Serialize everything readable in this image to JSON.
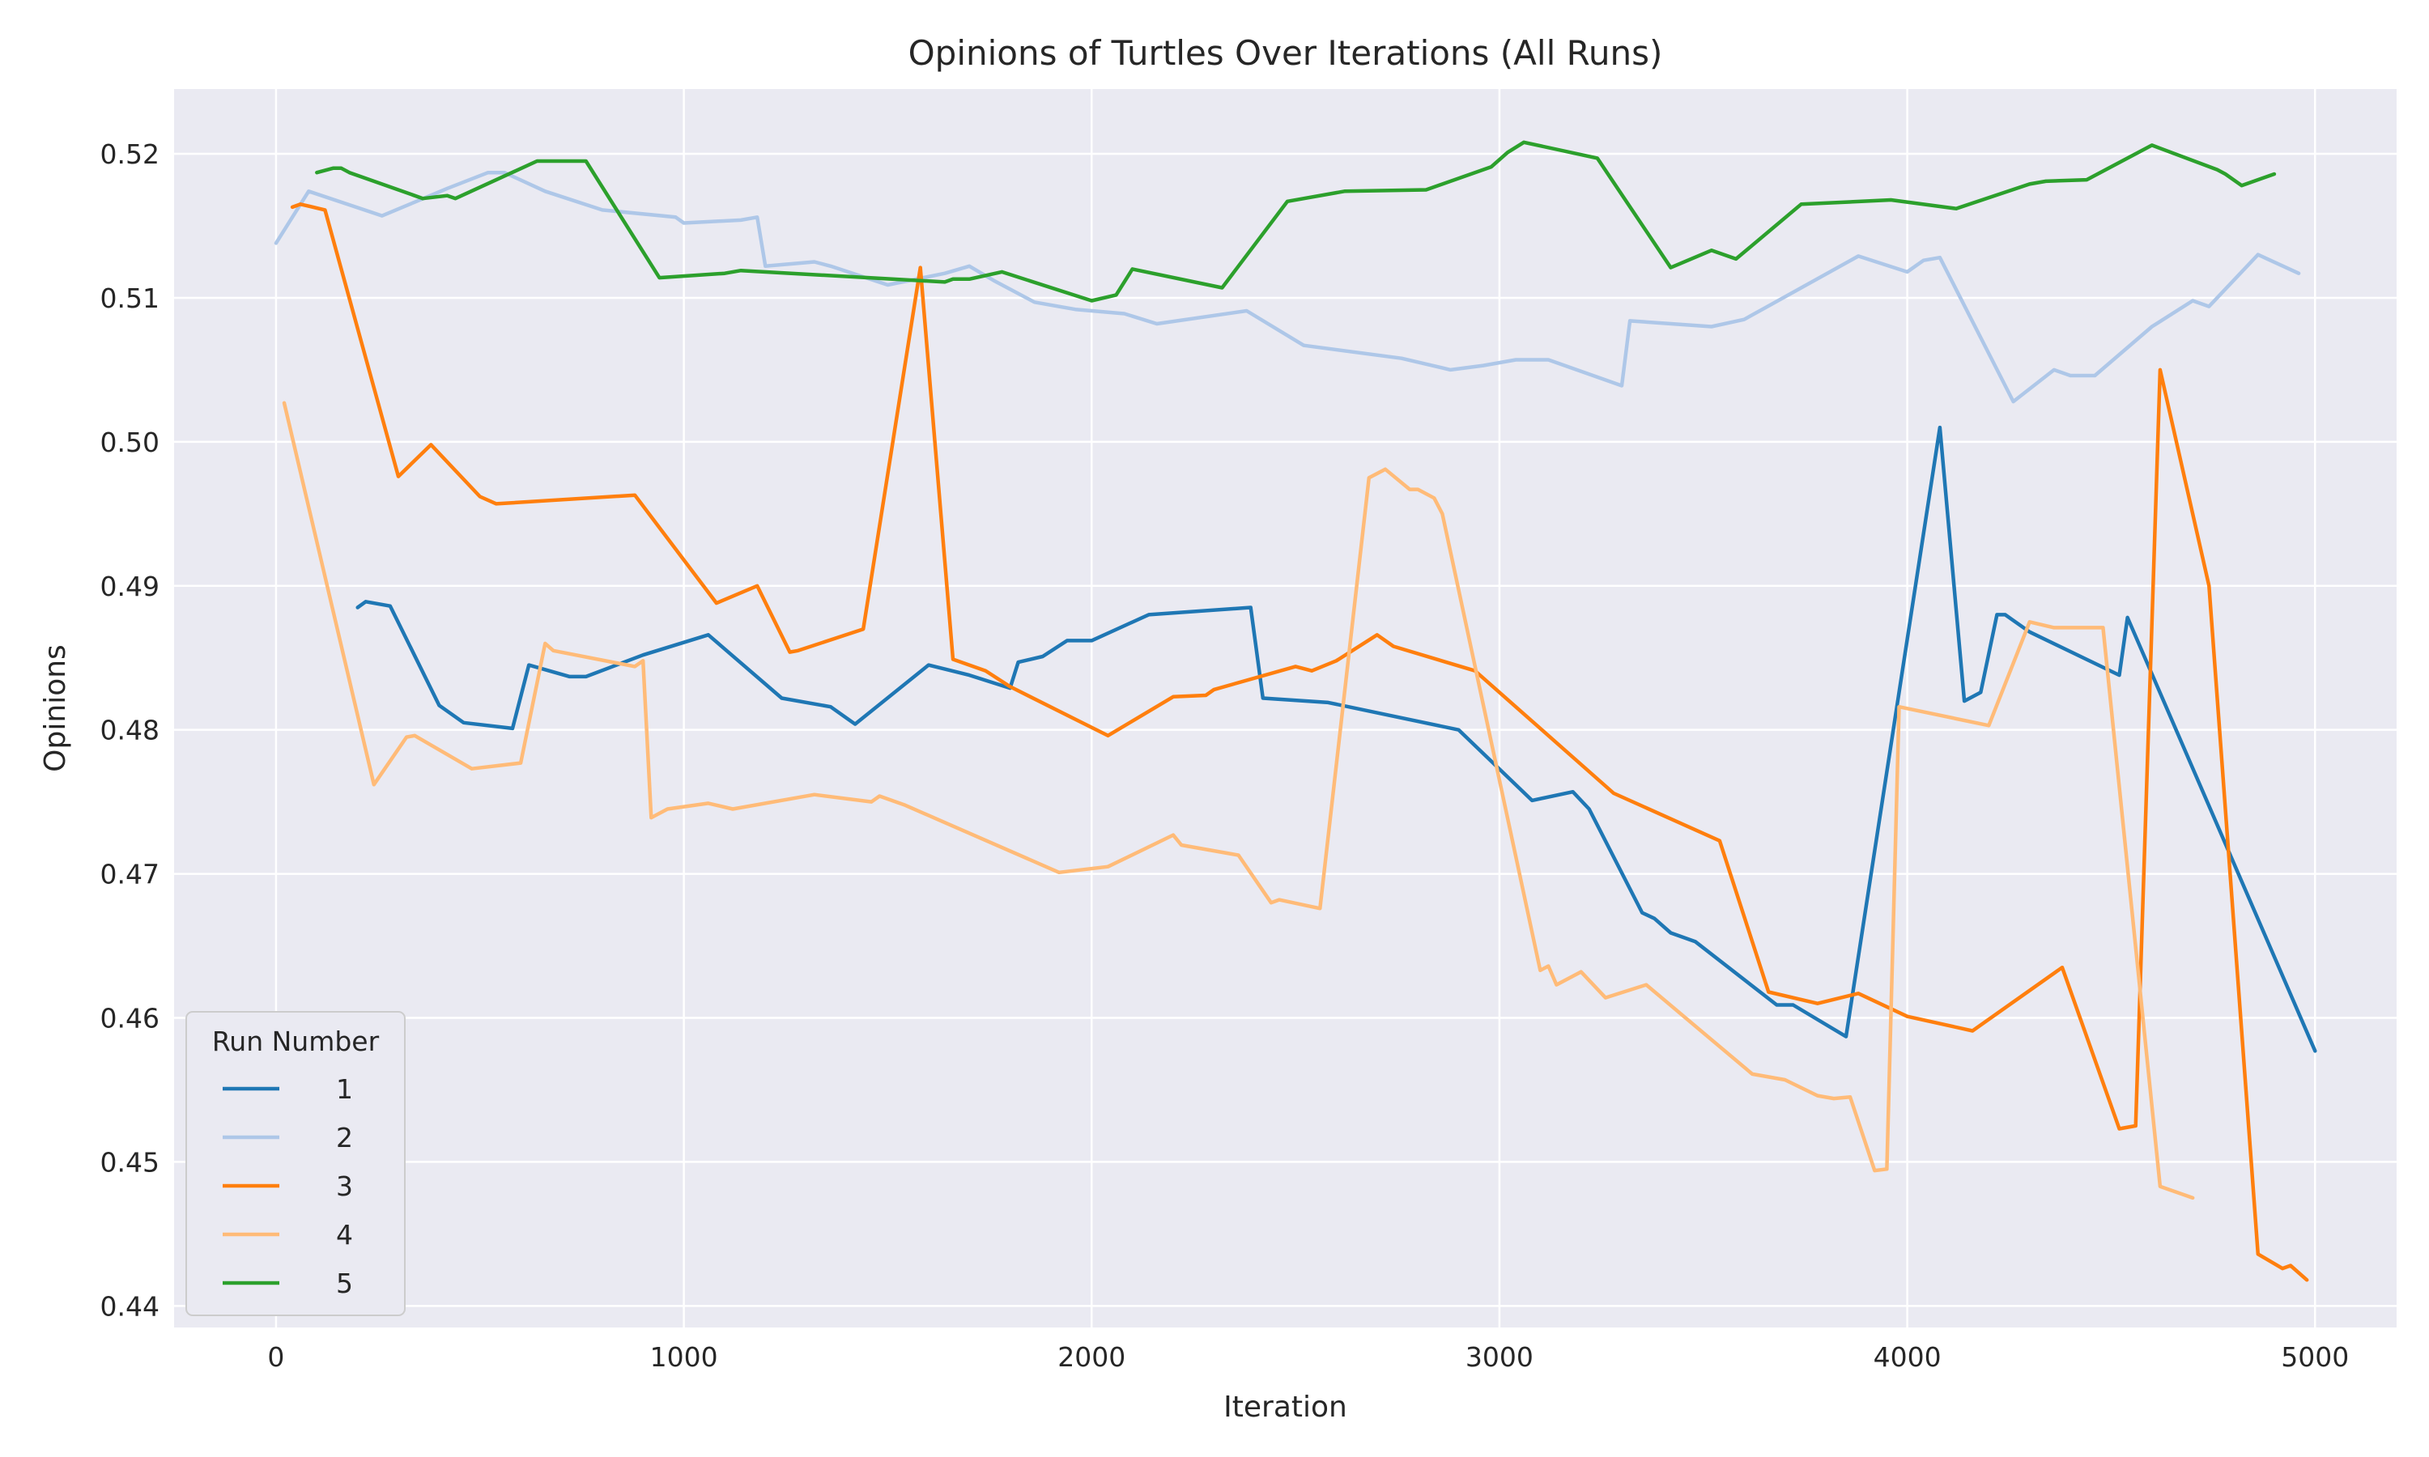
{
  "chart_data": {
    "type": "line",
    "title": "Opinions of Turtles Over Iterations (All Runs)",
    "xlabel": "Iteration",
    "ylabel": "Opinions",
    "xlim": [
      -250,
      5200
    ],
    "ylim": [
      0.4385,
      0.5245
    ],
    "xticks": [
      0,
      1000,
      2000,
      3000,
      4000,
      5000
    ],
    "xtick_labels": [
      "0",
      "1000",
      "2000",
      "3000",
      "4000",
      "5000"
    ],
    "yticks": [
      0.44,
      0.45,
      0.46,
      0.47,
      0.48,
      0.49,
      0.5,
      0.51,
      0.52
    ],
    "ytick_labels": [
      "0.44",
      "0.45",
      "0.46",
      "0.47",
      "0.48",
      "0.49",
      "0.50",
      "0.51",
      "0.52"
    ],
    "grid": true,
    "legend": {
      "title": "Run Number",
      "placement": "lower-left"
    },
    "series": [
      {
        "name": "1",
        "color": "#1f77b4",
        "points": [
          [
            200,
            0.4885
          ],
          [
            220,
            0.4889
          ],
          [
            280,
            0.4886
          ],
          [
            400,
            0.4817
          ],
          [
            460,
            0.4805
          ],
          [
            580,
            0.4801
          ],
          [
            620,
            0.4845
          ],
          [
            720,
            0.4837
          ],
          [
            760,
            0.4837
          ],
          [
            900,
            0.4852
          ],
          [
            1060,
            0.4866
          ],
          [
            1240,
            0.4822
          ],
          [
            1360,
            0.4816
          ],
          [
            1420,
            0.4804
          ],
          [
            1600,
            0.4845
          ],
          [
            1700,
            0.4838
          ],
          [
            1800,
            0.4829
          ],
          [
            1820,
            0.4847
          ],
          [
            1880,
            0.4851
          ],
          [
            1940,
            0.4862
          ],
          [
            2000,
            0.4862
          ],
          [
            2140,
            0.488
          ],
          [
            2390,
            0.4885
          ],
          [
            2420,
            0.4822
          ],
          [
            2580,
            0.4819
          ],
          [
            2900,
            0.48
          ],
          [
            3080,
            0.4751
          ],
          [
            3180,
            0.4757
          ],
          [
            3220,
            0.4745
          ],
          [
            3350,
            0.4673
          ],
          [
            3380,
            0.4669
          ],
          [
            3420,
            0.4659
          ],
          [
            3480,
            0.4653
          ],
          [
            3680,
            0.4609
          ],
          [
            3720,
            0.4609
          ],
          [
            3850,
            0.4587
          ],
          [
            4080,
            0.501
          ],
          [
            4140,
            0.482
          ],
          [
            4180,
            0.4826
          ],
          [
            4220,
            0.488
          ],
          [
            4240,
            0.488
          ],
          [
            4300,
            0.4868
          ],
          [
            4520,
            0.4838
          ],
          [
            4540,
            0.4878
          ],
          [
            5000,
            0.4577
          ]
        ]
      },
      {
        "name": "2",
        "color": "#aec7e8",
        "points": [
          [
            0,
            0.5138
          ],
          [
            80,
            0.5174
          ],
          [
            260,
            0.5157
          ],
          [
            420,
            0.5176
          ],
          [
            520,
            0.5187
          ],
          [
            560,
            0.5187
          ],
          [
            660,
            0.5174
          ],
          [
            800,
            0.5161
          ],
          [
            980,
            0.5156
          ],
          [
            1000,
            0.5152
          ],
          [
            1140,
            0.5154
          ],
          [
            1180,
            0.5156
          ],
          [
            1200,
            0.5122
          ],
          [
            1320,
            0.5125
          ],
          [
            1360,
            0.5122
          ],
          [
            1500,
            0.5109
          ],
          [
            1640,
            0.5117
          ],
          [
            1700,
            0.5122
          ],
          [
            1760,
            0.5112
          ],
          [
            1860,
            0.5097
          ],
          [
            1960,
            0.5092
          ],
          [
            2080,
            0.5089
          ],
          [
            2160,
            0.5082
          ],
          [
            2380,
            0.5091
          ],
          [
            2520,
            0.5067
          ],
          [
            2760,
            0.5058
          ],
          [
            2880,
            0.505
          ],
          [
            2960,
            0.5053
          ],
          [
            3040,
            0.5057
          ],
          [
            3120,
            0.5057
          ],
          [
            3300,
            0.5039
          ],
          [
            3320,
            0.5084
          ],
          [
            3520,
            0.508
          ],
          [
            3600,
            0.5085
          ],
          [
            3880,
            0.5129
          ],
          [
            4000,
            0.5118
          ],
          [
            4040,
            0.5126
          ],
          [
            4080,
            0.5128
          ],
          [
            4260,
            0.5028
          ],
          [
            4360,
            0.505
          ],
          [
            4400,
            0.5046
          ],
          [
            4460,
            0.5046
          ],
          [
            4600,
            0.508
          ],
          [
            4700,
            0.5098
          ],
          [
            4740,
            0.5094
          ],
          [
            4860,
            0.513
          ],
          [
            4960,
            0.5117
          ]
        ]
      },
      {
        "name": "3",
        "color": "#ff7f0e",
        "points": [
          [
            40,
            0.5163
          ],
          [
            60,
            0.5165
          ],
          [
            120,
            0.5161
          ],
          [
            300,
            0.4976
          ],
          [
            380,
            0.4998
          ],
          [
            500,
            0.4962
          ],
          [
            540,
            0.4957
          ],
          [
            880,
            0.4963
          ],
          [
            1080,
            0.4888
          ],
          [
            1180,
            0.49
          ],
          [
            1260,
            0.4854
          ],
          [
            1280,
            0.4855
          ],
          [
            1440,
            0.487
          ],
          [
            1580,
            0.5121
          ],
          [
            1660,
            0.4849
          ],
          [
            1740,
            0.4841
          ],
          [
            1800,
            0.483
          ],
          [
            2040,
            0.4796
          ],
          [
            2200,
            0.4823
          ],
          [
            2280,
            0.4824
          ],
          [
            2300,
            0.4828
          ],
          [
            2500,
            0.4844
          ],
          [
            2540,
            0.4841
          ],
          [
            2600,
            0.4848
          ],
          [
            2700,
            0.4866
          ],
          [
            2740,
            0.4858
          ],
          [
            2940,
            0.4841
          ],
          [
            3280,
            0.4756
          ],
          [
            3540,
            0.4723
          ],
          [
            3660,
            0.4618
          ],
          [
            3780,
            0.461
          ],
          [
            3880,
            0.4617
          ],
          [
            4000,
            0.4601
          ],
          [
            4160,
            0.4591
          ],
          [
            4380,
            0.4635
          ],
          [
            4520,
            0.4523
          ],
          [
            4560,
            0.4525
          ],
          [
            4620,
            0.505
          ],
          [
            4740,
            0.49
          ],
          [
            4860,
            0.4436
          ],
          [
            4920,
            0.4426
          ],
          [
            4940,
            0.4428
          ],
          [
            4980,
            0.4418
          ]
        ]
      },
      {
        "name": "4",
        "color": "#ffbb78",
        "points": [
          [
            20,
            0.5027
          ],
          [
            240,
            0.4762
          ],
          [
            320,
            0.4795
          ],
          [
            340,
            0.4796
          ],
          [
            480,
            0.4773
          ],
          [
            600,
            0.4777
          ],
          [
            660,
            0.486
          ],
          [
            680,
            0.4855
          ],
          [
            880,
            0.4844
          ],
          [
            900,
            0.4848
          ],
          [
            920,
            0.4739
          ],
          [
            960,
            0.4745
          ],
          [
            1060,
            0.4749
          ],
          [
            1120,
            0.4745
          ],
          [
            1320,
            0.4755
          ],
          [
            1460,
            0.475
          ],
          [
            1480,
            0.4754
          ],
          [
            1540,
            0.4748
          ],
          [
            1920,
            0.4701
          ],
          [
            2040,
            0.4705
          ],
          [
            2200,
            0.4727
          ],
          [
            2220,
            0.472
          ],
          [
            2360,
            0.4713
          ],
          [
            2440,
            0.468
          ],
          [
            2460,
            0.4682
          ],
          [
            2560,
            0.4676
          ],
          [
            2680,
            0.4975
          ],
          [
            2720,
            0.4981
          ],
          [
            2780,
            0.4967
          ],
          [
            2800,
            0.4967
          ],
          [
            2840,
            0.4961
          ],
          [
            2860,
            0.495
          ],
          [
            3100,
            0.4633
          ],
          [
            3120,
            0.4636
          ],
          [
            3140,
            0.4623
          ],
          [
            3200,
            0.4632
          ],
          [
            3260,
            0.4614
          ],
          [
            3360,
            0.4623
          ],
          [
            3620,
            0.4561
          ],
          [
            3700,
            0.4557
          ],
          [
            3780,
            0.4546
          ],
          [
            3820,
            0.4544
          ],
          [
            3860,
            0.4545
          ],
          [
            3920,
            0.4494
          ],
          [
            3950,
            0.4495
          ],
          [
            3980,
            0.4816
          ],
          [
            4200,
            0.4803
          ],
          [
            4300,
            0.4875
          ],
          [
            4360,
            0.4871
          ],
          [
            4480,
            0.4871
          ],
          [
            4620,
            0.4483
          ],
          [
            4700,
            0.4475
          ]
        ]
      },
      {
        "name": "5",
        "color": "#2ca02c",
        "points": [
          [
            100,
            0.5187
          ],
          [
            140,
            0.519
          ],
          [
            160,
            0.519
          ],
          [
            180,
            0.5187
          ],
          [
            360,
            0.5169
          ],
          [
            420,
            0.5171
          ],
          [
            440,
            0.5169
          ],
          [
            640,
            0.5195
          ],
          [
            760,
            0.5195
          ],
          [
            940,
            0.5114
          ],
          [
            1100,
            0.5117
          ],
          [
            1140,
            0.5119
          ],
          [
            1640,
            0.5111
          ],
          [
            1660,
            0.5113
          ],
          [
            1700,
            0.5113
          ],
          [
            1780,
            0.5118
          ],
          [
            2000,
            0.5098
          ],
          [
            2060,
            0.5102
          ],
          [
            2100,
            0.512
          ],
          [
            2320,
            0.5107
          ],
          [
            2480,
            0.5167
          ],
          [
            2620,
            0.5174
          ],
          [
            2820,
            0.5175
          ],
          [
            2980,
            0.5191
          ],
          [
            3020,
            0.5201
          ],
          [
            3060,
            0.5208
          ],
          [
            3240,
            0.5197
          ],
          [
            3420,
            0.5121
          ],
          [
            3520,
            0.5133
          ],
          [
            3580,
            0.5127
          ],
          [
            3740,
            0.5165
          ],
          [
            3960,
            0.5168
          ],
          [
            4120,
            0.5162
          ],
          [
            4300,
            0.5179
          ],
          [
            4340,
            0.5181
          ],
          [
            4440,
            0.5182
          ],
          [
            4600,
            0.5206
          ],
          [
            4760,
            0.5189
          ],
          [
            4780,
            0.5186
          ],
          [
            4820,
            0.5178
          ],
          [
            4900,
            0.5186
          ]
        ]
      }
    ]
  }
}
